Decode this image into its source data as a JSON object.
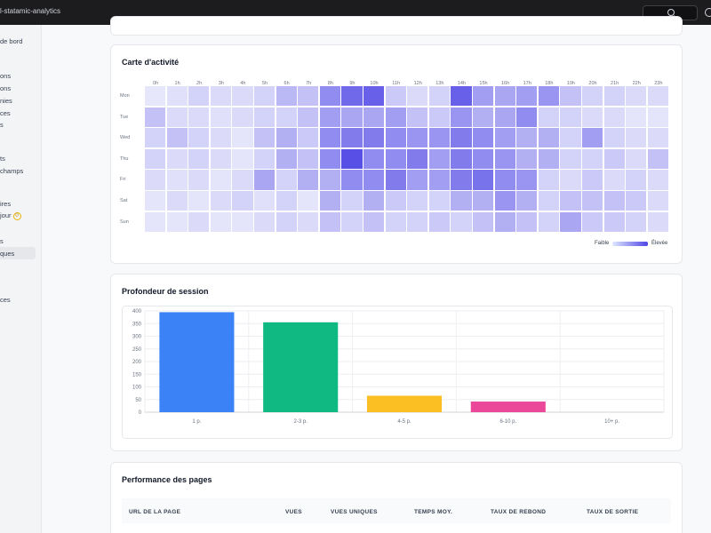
{
  "app": {
    "title": "l-statamic-analytics"
  },
  "sidebar": {
    "items": [
      {
        "label": "de bord"
      },
      {
        "label": "ons"
      },
      {
        "label": "ons"
      },
      {
        "label": "nies"
      },
      {
        "label": "ces"
      },
      {
        "label": "s"
      },
      {
        "label": "ts"
      },
      {
        "label": "champs"
      },
      {
        "label": "ires"
      },
      {
        "label": "jour"
      },
      {
        "label": "s"
      },
      {
        "label": "ques"
      },
      {
        "label": "ces"
      }
    ],
    "badge": "0"
  },
  "heatmap": {
    "title": "Carte d'activité",
    "hours": [
      "0h",
      "1h",
      "2h",
      "3h",
      "4h",
      "5h",
      "6h",
      "7h",
      "8h",
      "9h",
      "10h",
      "11h",
      "12h",
      "13h",
      "14h",
      "15h",
      "16h",
      "17h",
      "18h",
      "19h",
      "20h",
      "21h",
      "22h",
      "23h"
    ],
    "days": [
      "Mon",
      "Tue",
      "Wed",
      "Thu",
      "Fri",
      "Sat",
      "Sun"
    ],
    "values": [
      [
        0.08,
        0.12,
        0.2,
        0.15,
        0.15,
        0.2,
        0.35,
        0.3,
        0.6,
        0.8,
        0.85,
        0.25,
        0.15,
        0.2,
        0.85,
        0.5,
        0.45,
        0.5,
        0.55,
        0.3,
        0.2,
        0.2,
        0.15,
        0.15
      ],
      [
        0.3,
        0.15,
        0.15,
        0.12,
        0.15,
        0.2,
        0.2,
        0.3,
        0.5,
        0.45,
        0.45,
        0.5,
        0.3,
        0.25,
        0.55,
        0.4,
        0.45,
        0.6,
        0.2,
        0.2,
        0.15,
        0.15,
        0.1,
        0.1
      ],
      [
        0.2,
        0.3,
        0.2,
        0.15,
        0.1,
        0.3,
        0.4,
        0.25,
        0.6,
        0.7,
        0.7,
        0.6,
        0.55,
        0.55,
        0.7,
        0.6,
        0.5,
        0.4,
        0.4,
        0.2,
        0.5,
        0.2,
        0.15,
        0.15
      ],
      [
        0.2,
        0.15,
        0.2,
        0.15,
        0.1,
        0.2,
        0.4,
        0.3,
        0.6,
        0.95,
        0.6,
        0.6,
        0.7,
        0.5,
        0.7,
        0.6,
        0.55,
        0.4,
        0.4,
        0.2,
        0.2,
        0.25,
        0.15,
        0.3
      ],
      [
        0.15,
        0.12,
        0.15,
        0.1,
        0.15,
        0.45,
        0.2,
        0.4,
        0.4,
        0.6,
        0.6,
        0.7,
        0.5,
        0.5,
        0.7,
        0.75,
        0.6,
        0.55,
        0.2,
        0.15,
        0.25,
        0.15,
        0.2,
        0.15
      ],
      [
        0.1,
        0.15,
        0.1,
        0.15,
        0.2,
        0.12,
        0.2,
        0.1,
        0.4,
        0.2,
        0.4,
        0.25,
        0.2,
        0.2,
        0.4,
        0.4,
        0.55,
        0.4,
        0.2,
        0.3,
        0.3,
        0.3,
        0.25,
        0.15
      ],
      [
        0.1,
        0.1,
        0.15,
        0.1,
        0.1,
        0.15,
        0.2,
        0.15,
        0.3,
        0.2,
        0.3,
        0.2,
        0.2,
        0.25,
        0.2,
        0.3,
        0.4,
        0.3,
        0.2,
        0.45,
        0.25,
        0.25,
        0.2,
        0.15
      ]
    ],
    "legend_low": "Faible",
    "legend_high": "Élevée"
  },
  "session_chart": {
    "title": "Profondeur de session"
  },
  "chart_data": {
    "type": "bar",
    "title": "Profondeur de session",
    "categories": [
      "1 p.",
      "2-3 p.",
      "4-5 p.",
      "6-10 p.",
      "10+ p."
    ],
    "values": [
      395,
      355,
      65,
      42,
      0
    ],
    "colors": [
      "#3b82f6",
      "#10b981",
      "#fbbf24",
      "#ec4899",
      "#9ca3af"
    ],
    "ylim": [
      0,
      400
    ],
    "yticks": [
      0,
      50,
      100,
      150,
      200,
      250,
      300,
      350,
      400
    ],
    "xlabel": "",
    "ylabel": "",
    "grid": true
  },
  "pages_table": {
    "title": "Performance des pages",
    "columns": [
      "URL DE LA PAGE",
      "VUES",
      "VUES UNIQUES",
      "TEMPS MOY.",
      "TAUX DE REBOND",
      "TAUX DE SORTIE"
    ]
  }
}
